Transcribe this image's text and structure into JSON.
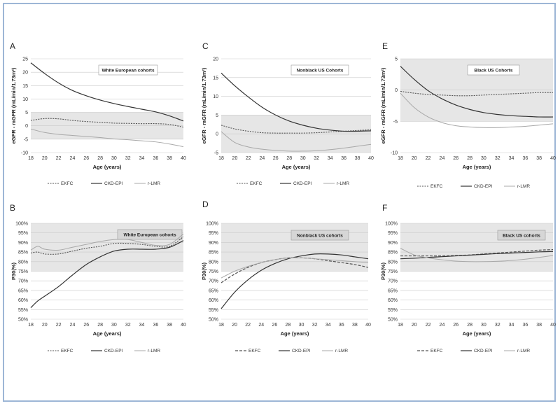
{
  "chart_data": [
    {
      "panel": "A",
      "type": "line",
      "cohort": "White European cohorts",
      "xlabel": "Age (years)",
      "ylabel": "eGFR - mGFR (mL/min/1.73m²)",
      "xlim": [
        18,
        40
      ],
      "ylim": [
        -10,
        25
      ],
      "yticks": [
        -10,
        -5,
        0,
        5,
        10,
        15,
        20,
        25
      ],
      "xticks": [
        18,
        20,
        22,
        24,
        26,
        28,
        30,
        32,
        34,
        36,
        38,
        40
      ],
      "band": [
        -5,
        5
      ],
      "ytick_suffix": "",
      "series": [
        {
          "name": "EKFC",
          "style": "dotted",
          "x": [
            18,
            20,
            22,
            24,
            26,
            28,
            30,
            32,
            34,
            36,
            38,
            40
          ],
          "y": [
            2.0,
            2.7,
            2.6,
            2.0,
            1.6,
            1.3,
            1.0,
            0.9,
            0.8,
            0.8,
            0.5,
            -0.5
          ]
        },
        {
          "name": "CKD-EPI",
          "style": "solid",
          "x": [
            18,
            20,
            22,
            24,
            26,
            28,
            30,
            32,
            34,
            36,
            38,
            40
          ],
          "y": [
            23.5,
            19.5,
            16.0,
            13.2,
            11.2,
            9.6,
            8.3,
            7.2,
            6.2,
            5.2,
            3.7,
            1.8
          ]
        },
        {
          "name": "r-LMR",
          "style": "light",
          "x": [
            18,
            20,
            22,
            24,
            26,
            28,
            30,
            32,
            34,
            36,
            38,
            40
          ],
          "y": [
            -1.2,
            -2.5,
            -3.2,
            -3.6,
            -4.0,
            -4.4,
            -4.9,
            -5.2,
            -5.6,
            -6.0,
            -6.8,
            -7.8
          ]
        }
      ]
    },
    {
      "panel": "C",
      "type": "line",
      "cohort": "Nonblack US Cohorts",
      "xlabel": "Age (years)",
      "ylabel": "eGFR - mGFR (mL/min/1.73m²)",
      "xlim": [
        18,
        40
      ],
      "ylim": [
        -5,
        20
      ],
      "yticks": [
        -5,
        0,
        5,
        10,
        15,
        20
      ],
      "xticks": [
        18,
        20,
        22,
        24,
        26,
        28,
        30,
        32,
        34,
        36,
        38,
        40
      ],
      "band": [
        -5,
        5
      ],
      "ytick_suffix": "",
      "series": [
        {
          "name": "EKFC",
          "style": "dotted",
          "x": [
            18,
            20,
            22,
            24,
            26,
            28,
            30,
            32,
            34,
            36,
            38,
            40
          ],
          "y": [
            2.3,
            1.3,
            0.7,
            0.3,
            0.2,
            0.2,
            0.2,
            0.3,
            0.5,
            0.7,
            0.9,
            1.1
          ]
        },
        {
          "name": "CKD-EPI",
          "style": "solid",
          "x": [
            18,
            20,
            22,
            24,
            26,
            28,
            30,
            32,
            34,
            36,
            38,
            40
          ],
          "y": [
            16.2,
            12.8,
            9.8,
            7.1,
            5.0,
            3.4,
            2.3,
            1.5,
            1.0,
            0.7,
            0.7,
            0.8
          ]
        },
        {
          "name": "r-LMR",
          "style": "light",
          "x": [
            18,
            20,
            22,
            24,
            26,
            28,
            30,
            32,
            34,
            36,
            38,
            40
          ],
          "y": [
            0.6,
            -2.3,
            -3.5,
            -4.1,
            -4.4,
            -4.6,
            -4.6,
            -4.5,
            -4.2,
            -3.8,
            -3.3,
            -2.8
          ]
        }
      ]
    },
    {
      "panel": "E",
      "type": "line",
      "cohort": "Black US Cohorts",
      "xlabel": "Age (years)",
      "ylabel": "eGFR - mGFR (mL/min/1.73m²)",
      "xlim": [
        18,
        40
      ],
      "ylim": [
        -10,
        5
      ],
      "yticks": [
        -10,
        -5,
        0,
        5
      ],
      "xticks": [
        18,
        20,
        22,
        24,
        26,
        28,
        30,
        32,
        34,
        36,
        38,
        40
      ],
      "band": [
        -5,
        5
      ],
      "ytick_suffix": "",
      "series": [
        {
          "name": "EKFC",
          "style": "dotted",
          "x": [
            18,
            20,
            22,
            24,
            26,
            28,
            30,
            32,
            34,
            36,
            38,
            40
          ],
          "y": [
            -0.2,
            -0.5,
            -0.7,
            -0.8,
            -0.9,
            -0.9,
            -0.8,
            -0.7,
            -0.6,
            -0.5,
            -0.4,
            -0.4
          ]
        },
        {
          "name": "CKD-EPI",
          "style": "solid",
          "x": [
            18,
            20,
            22,
            24,
            26,
            28,
            30,
            32,
            34,
            36,
            38,
            40
          ],
          "y": [
            3.8,
            1.7,
            -0.1,
            -1.4,
            -2.4,
            -3.1,
            -3.6,
            -3.9,
            -4.1,
            -4.2,
            -4.3,
            -4.3
          ]
        },
        {
          "name": "r-LMR",
          "style": "light",
          "x": [
            18,
            20,
            22,
            24,
            26,
            28,
            30,
            32,
            34,
            36,
            38,
            40
          ],
          "y": [
            -0.5,
            -2.8,
            -4.3,
            -5.2,
            -5.7,
            -5.9,
            -6.0,
            -6.0,
            -5.9,
            -5.8,
            -5.6,
            -5.4
          ]
        }
      ]
    },
    {
      "panel": "B",
      "type": "line",
      "cohort": "White European cohorts",
      "xlabel": "Age (years)",
      "ylabel": "P30(%)",
      "xlim": [
        18,
        40
      ],
      "ylim": [
        50,
        100
      ],
      "yticks": [
        50,
        55,
        60,
        65,
        70,
        75,
        80,
        85,
        90,
        95,
        100
      ],
      "xticks": [
        18,
        20,
        22,
        24,
        26,
        28,
        30,
        32,
        34,
        36,
        38,
        40
      ],
      "band": [
        75,
        100
      ],
      "ytick_suffix": "%",
      "series": [
        {
          "name": "EKFC",
          "style": "dotted",
          "x": [
            18,
            19,
            20,
            22,
            24,
            26,
            28,
            30,
            32,
            34,
            36,
            38,
            40
          ],
          "y": [
            84.5,
            85.0,
            84.0,
            84.0,
            85.5,
            87.0,
            88.0,
            89.5,
            89.5,
            89.0,
            88.0,
            88.0,
            93.0
          ]
        },
        {
          "name": "CKD-EPI",
          "style": "solid",
          "x": [
            18,
            19,
            20,
            22,
            24,
            26,
            28,
            30,
            32,
            34,
            36,
            38,
            40
          ],
          "y": [
            56.0,
            59.5,
            62.0,
            67.0,
            73.0,
            78.5,
            82.5,
            85.5,
            86.5,
            86.5,
            86.5,
            87.5,
            91.0
          ]
        },
        {
          "name": "r-LMR",
          "style": "light",
          "x": [
            18,
            19,
            20,
            22,
            24,
            26,
            28,
            30,
            32,
            34,
            36,
            38,
            40
          ],
          "y": [
            86.0,
            88.0,
            86.5,
            86.0,
            87.5,
            89.0,
            90.5,
            91.5,
            91.5,
            90.0,
            88.5,
            89.0,
            94.5
          ]
        }
      ]
    },
    {
      "panel": "D",
      "type": "line",
      "cohort": "Nonblack US cohorts",
      "xlabel": "Age (years)",
      "ylabel": "P30(%)",
      "xlim": [
        18,
        40
      ],
      "ylim": [
        50,
        100
      ],
      "yticks": [
        50,
        55,
        60,
        65,
        70,
        75,
        80,
        85,
        90,
        95,
        100
      ],
      "xticks": [
        18,
        20,
        22,
        24,
        26,
        28,
        30,
        32,
        34,
        36,
        38,
        40
      ],
      "band": [
        75,
        100
      ],
      "ytick_suffix": "%",
      "series": [
        {
          "name": "EKFC",
          "style": "dashed",
          "x": [
            18,
            20,
            22,
            24,
            26,
            28,
            30,
            32,
            34,
            36,
            38,
            40
          ],
          "y": [
            69.0,
            73.5,
            77.0,
            79.5,
            81.0,
            82.0,
            82.0,
            81.5,
            80.5,
            79.5,
            78.5,
            77.0
          ]
        },
        {
          "name": "CKD-EPI",
          "style": "solid",
          "x": [
            18,
            20,
            22,
            24,
            26,
            28,
            30,
            32,
            34,
            36,
            38,
            40
          ],
          "y": [
            55.5,
            64.0,
            70.5,
            75.5,
            79.0,
            81.5,
            83.0,
            84.0,
            84.0,
            83.5,
            82.5,
            81.5
          ]
        },
        {
          "name": "r-LMR",
          "style": "light",
          "x": [
            18,
            20,
            22,
            24,
            26,
            28,
            30,
            32,
            34,
            36,
            38,
            40
          ],
          "y": [
            71.5,
            75.0,
            77.5,
            79.5,
            81.0,
            82.0,
            82.0,
            81.5,
            81.0,
            80.5,
            80.0,
            79.5
          ]
        }
      ]
    },
    {
      "panel": "F",
      "type": "line",
      "cohort": "Black US cohorts",
      "xlabel": "Age (years)",
      "ylabel": "P30(%)",
      "xlim": [
        18,
        40
      ],
      "ylim": [
        50,
        100
      ],
      "yticks": [
        50,
        55,
        60,
        65,
        70,
        75,
        80,
        85,
        90,
        95,
        100
      ],
      "xticks": [
        18,
        20,
        22,
        24,
        26,
        28,
        30,
        32,
        34,
        36,
        38,
        40
      ],
      "band": [
        75,
        100
      ],
      "ytick_suffix": "%",
      "series": [
        {
          "name": "EKFC",
          "style": "dashed",
          "x": [
            18,
            20,
            22,
            24,
            26,
            28,
            30,
            32,
            34,
            36,
            38,
            40
          ],
          "y": [
            83.0,
            83.0,
            83.0,
            83.0,
            83.2,
            83.5,
            84.0,
            84.5,
            85.0,
            85.5,
            86.0,
            86.3
          ]
        },
        {
          "name": "CKD-EPI",
          "style": "solid",
          "x": [
            18,
            20,
            22,
            24,
            26,
            28,
            30,
            32,
            34,
            36,
            38,
            40
          ],
          "y": [
            81.5,
            81.8,
            82.2,
            82.6,
            83.0,
            83.4,
            83.8,
            84.2,
            84.5,
            84.8,
            85.1,
            85.3
          ]
        },
        {
          "name": "r-LMR",
          "style": "light",
          "x": [
            18,
            20,
            22,
            24,
            26,
            28,
            30,
            32,
            34,
            36,
            38,
            40
          ],
          "y": [
            87.0,
            83.5,
            82.0,
            81.0,
            80.3,
            80.0,
            80.0,
            80.2,
            80.6,
            81.3,
            82.2,
            83.2
          ]
        }
      ]
    }
  ],
  "colors": {
    "band": "#e6e6e6",
    "grid": "#c9c9c9",
    "CKD-EPI": "#333333",
    "EKFC": "#555555",
    "r-LMR": "#a8a8a8",
    "border": "#9db6d6"
  }
}
